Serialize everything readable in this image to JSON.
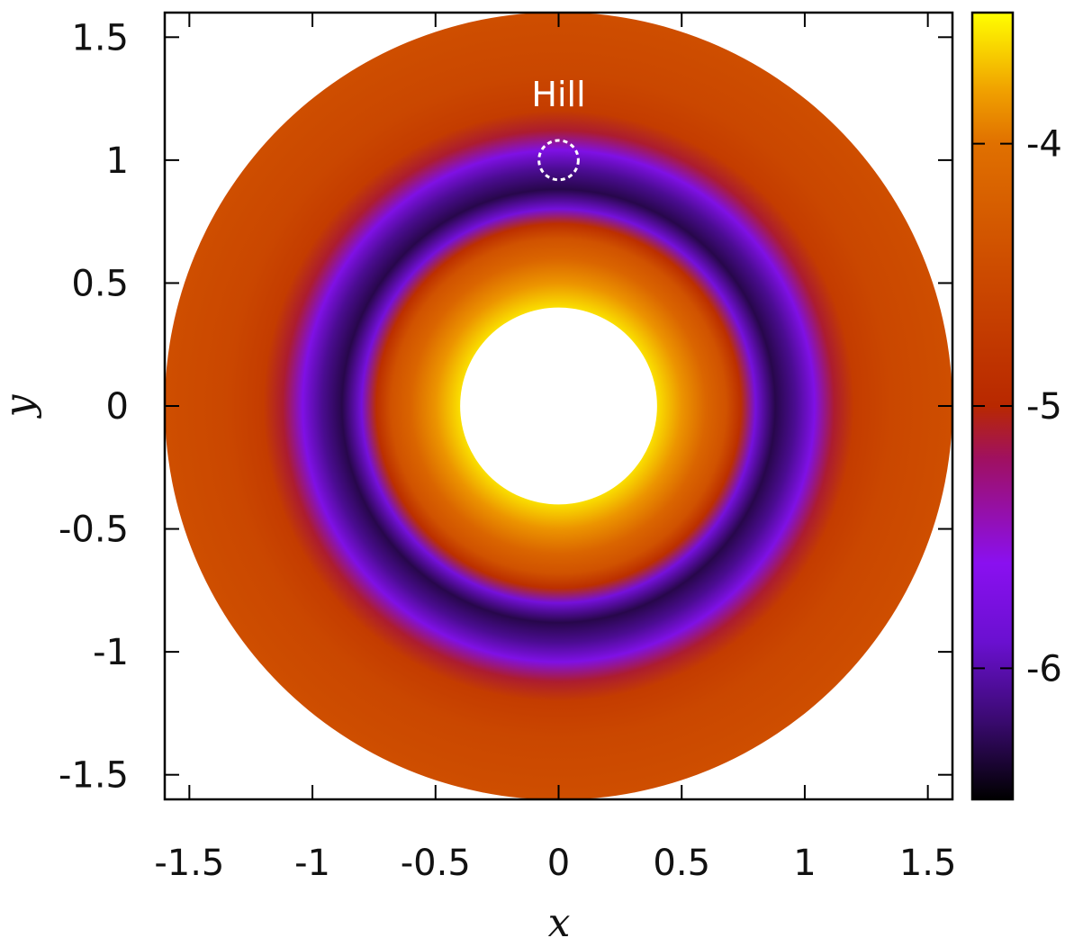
{
  "chart_data": {
    "type": "disk-map",
    "x_label": "x",
    "y_label": "y",
    "xlim": [
      -1.6,
      1.6
    ],
    "ylim": [
      -1.6,
      1.6
    ],
    "xticks": [
      -1.5,
      -1,
      -0.5,
      0,
      0.5,
      1,
      1.5
    ],
    "yticks": [
      -1.5,
      -1,
      -0.5,
      0,
      0.5,
      1,
      1.5
    ],
    "inner_radius": 0.4,
    "outer_radius": 1.6,
    "profile": {
      "r": [
        0.4,
        0.5,
        0.6,
        0.68,
        0.74,
        0.8,
        0.88,
        0.96,
        1.04,
        1.12,
        1.2,
        1.35,
        1.6
      ],
      "values": [
        -3.6,
        -3.85,
        -4.15,
        -4.4,
        -4.9,
        -5.8,
        -6.3,
        -6.1,
        -5.7,
        -5.1,
        -4.7,
        -4.55,
        -4.45
      ]
    },
    "colorbar": {
      "clim": [
        -6.5,
        -3.5
      ],
      "ticks": [
        -6,
        -5,
        -4
      ],
      "colormap": {
        "values": [
          -6.5,
          -6.2,
          -5.9,
          -5.6,
          -5.2,
          -5,
          -4.5,
          -4,
          -3.8,
          -3.5
        ],
        "colors": [
          "#000000",
          "#3a0a70",
          "#6a10d0",
          "#8a10f0",
          "#a01060",
          "#b82800",
          "#cc4a00",
          "#e07000",
          "#f0a000",
          "#ffff00"
        ]
      }
    },
    "annotation": {
      "text": "Hill",
      "center": [
        0,
        1
      ],
      "radius": 0.08
    }
  }
}
